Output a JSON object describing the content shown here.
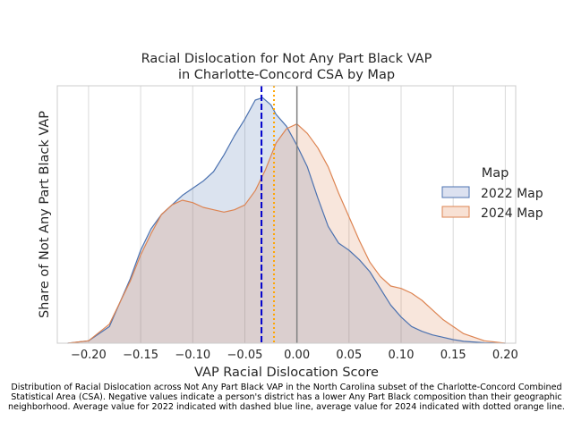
{
  "chart_data": {
    "type": "area",
    "title": "Racial Dislocation for Not Any Part Black VAP\nin Charlotte-Concord CSA by Map",
    "xlabel": "VAP Racial Dislocation Score",
    "ylabel": "Share of Not Any Part Black VAP",
    "xlim": [
      -0.23,
      0.21
    ],
    "ylim": [
      0,
      1.08
    ],
    "xticks": [
      -0.2,
      -0.15,
      -0.1,
      -0.05,
      0.0,
      0.05,
      0.1,
      0.15,
      0.2
    ],
    "xtick_labels": [
      "−0.20",
      "−0.15",
      "−0.10",
      "−0.05",
      "0.00",
      "0.05",
      "0.10",
      "0.15",
      "0.20"
    ],
    "grid": true,
    "legend": {
      "title": "Map",
      "placement": "right"
    },
    "series": [
      {
        "name": "2022 Map",
        "color": "#4c72b0",
        "x": [
          -0.22,
          -0.2,
          -0.18,
          -0.16,
          -0.15,
          -0.14,
          -0.13,
          -0.12,
          -0.11,
          -0.1,
          -0.09,
          -0.08,
          -0.07,
          -0.06,
          -0.05,
          -0.04,
          -0.033,
          -0.025,
          -0.02,
          -0.01,
          0.0,
          0.01,
          0.02,
          0.03,
          0.04,
          0.05,
          0.06,
          0.07,
          0.08,
          0.09,
          0.1,
          0.11,
          0.12,
          0.13,
          0.14,
          0.15,
          0.16,
          0.18,
          0.2
        ],
        "y": [
          0.0,
          0.01,
          0.07,
          0.27,
          0.39,
          0.48,
          0.54,
          0.58,
          0.62,
          0.65,
          0.68,
          0.72,
          0.79,
          0.87,
          0.94,
          1.02,
          1.03,
          1.0,
          0.96,
          0.91,
          0.83,
          0.74,
          0.61,
          0.49,
          0.42,
          0.39,
          0.35,
          0.3,
          0.23,
          0.16,
          0.11,
          0.07,
          0.05,
          0.035,
          0.025,
          0.015,
          0.008,
          0.002,
          0.0
        ]
      },
      {
        "name": "2024 Map",
        "color": "#dd8452",
        "x": [
          -0.22,
          -0.2,
          -0.18,
          -0.16,
          -0.15,
          -0.14,
          -0.13,
          -0.12,
          -0.11,
          -0.1,
          -0.09,
          -0.08,
          -0.07,
          -0.06,
          -0.05,
          -0.04,
          -0.03,
          -0.02,
          -0.01,
          0.0,
          0.01,
          0.02,
          0.03,
          0.04,
          0.05,
          0.06,
          0.07,
          0.08,
          0.09,
          0.1,
          0.11,
          0.12,
          0.13,
          0.14,
          0.15,
          0.16,
          0.18,
          0.2
        ],
        "y": [
          0.0,
          0.01,
          0.08,
          0.26,
          0.37,
          0.46,
          0.54,
          0.58,
          0.6,
          0.59,
          0.57,
          0.56,
          0.55,
          0.56,
          0.58,
          0.64,
          0.73,
          0.84,
          0.9,
          0.92,
          0.88,
          0.82,
          0.74,
          0.63,
          0.53,
          0.43,
          0.34,
          0.28,
          0.24,
          0.23,
          0.21,
          0.18,
          0.14,
          0.1,
          0.07,
          0.04,
          0.01,
          0.0
        ]
      }
    ],
    "reference_lines": [
      {
        "x": -0.034,
        "style": "dashed",
        "color": "#0000cc"
      },
      {
        "x": -0.022,
        "style": "dotted",
        "color": "#ffa500"
      },
      {
        "x": 0.0,
        "style": "solid",
        "color": "#808080"
      }
    ]
  },
  "caption": "Distribution of Racial Dislocation across Not Any Part Black VAP in the North Carolina subset of the Charlotte-Concord Combined Statistical Area (CSA). Negative values indicate a person's district has a lower Any Part Black composition than their geographic neighborhood. Average value for 2022 indicated with dashed blue line, average value for 2024 indicated with dotted orange line."
}
